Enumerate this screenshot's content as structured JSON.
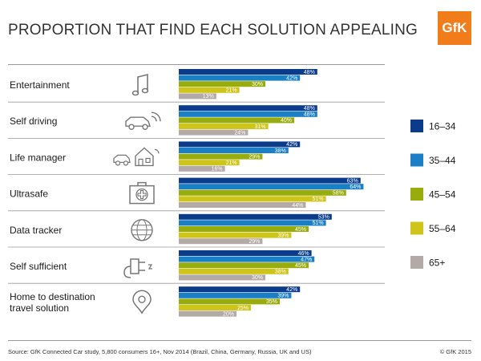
{
  "header": {
    "title": "PROPORTION THAT FIND EACH SOLUTION APPEALING",
    "logo_text": "GfK"
  },
  "footer": {
    "source": "Source: GfK Connected Car study, 5,800 consumers 16+, Nov 2014 (Brazil, China, Germany, Russia, UK and US)",
    "copyright": "© GfK 2015"
  },
  "colors": {
    "16–34": "#0b3c8c",
    "35–44": "#1a7fc4",
    "45–54": "#98ac0e",
    "55–64": "#cfc41a",
    "65+": "#b3a9a6"
  },
  "chart_data": {
    "type": "bar",
    "orientation": "horizontal",
    "title": "PROPORTION THAT FIND EACH SOLUTION APPEALING",
    "categories": [
      [
        "Entertainment"
      ],
      [
        "Self driving"
      ],
      [
        "Life manager"
      ],
      [
        "Ultrasafe"
      ],
      [
        "Data tracker"
      ],
      [
        "Self sufficient"
      ],
      [
        "Home to destination",
        "travel solution"
      ]
    ],
    "icons": [
      "music-note-icon",
      "self-driving-car-icon",
      "car-and-house-icon",
      "first-aid-kit-icon",
      "data-globe-icon",
      "power-plug-icon",
      "location-pin-icon"
    ],
    "series": [
      {
        "name": "16–34",
        "values": [
          48,
          48,
          42,
          63,
          53,
          46,
          42
        ],
        "labels": [
          "48%",
          "48%",
          "42%",
          "63%",
          "53%",
          "46%",
          "42%"
        ]
      },
      {
        "name": "35–44",
        "values": [
          42,
          48,
          38,
          64,
          51,
          47,
          39
        ],
        "labels": [
          "42%",
          "48%",
          "38%",
          "64%",
          "51%",
          "47%",
          "39%"
        ]
      },
      {
        "name": "45–54",
        "values": [
          30,
          40,
          29,
          58,
          45,
          45,
          35
        ],
        "labels": [
          "30%",
          "40%",
          "29%",
          "58%",
          "45%",
          "45%",
          "35%"
        ]
      },
      {
        "name": "55–64",
        "values": [
          21,
          31,
          21,
          51,
          39,
          38,
          25
        ],
        "labels": [
          "21%",
          "31%",
          "21%",
          "51%",
          "39%",
          "38%",
          "25%"
        ]
      },
      {
        "name": "65+",
        "values": [
          13,
          24,
          16,
          44,
          29,
          30,
          20
        ],
        "labels": [
          "13%",
          "24%",
          "16%",
          "44%",
          "29%",
          "30%",
          "20%"
        ]
      }
    ],
    "legend": [
      "16–34",
      "35–44",
      "45–54",
      "55–64",
      "65+"
    ],
    "xlim": [
      0,
      100
    ]
  }
}
